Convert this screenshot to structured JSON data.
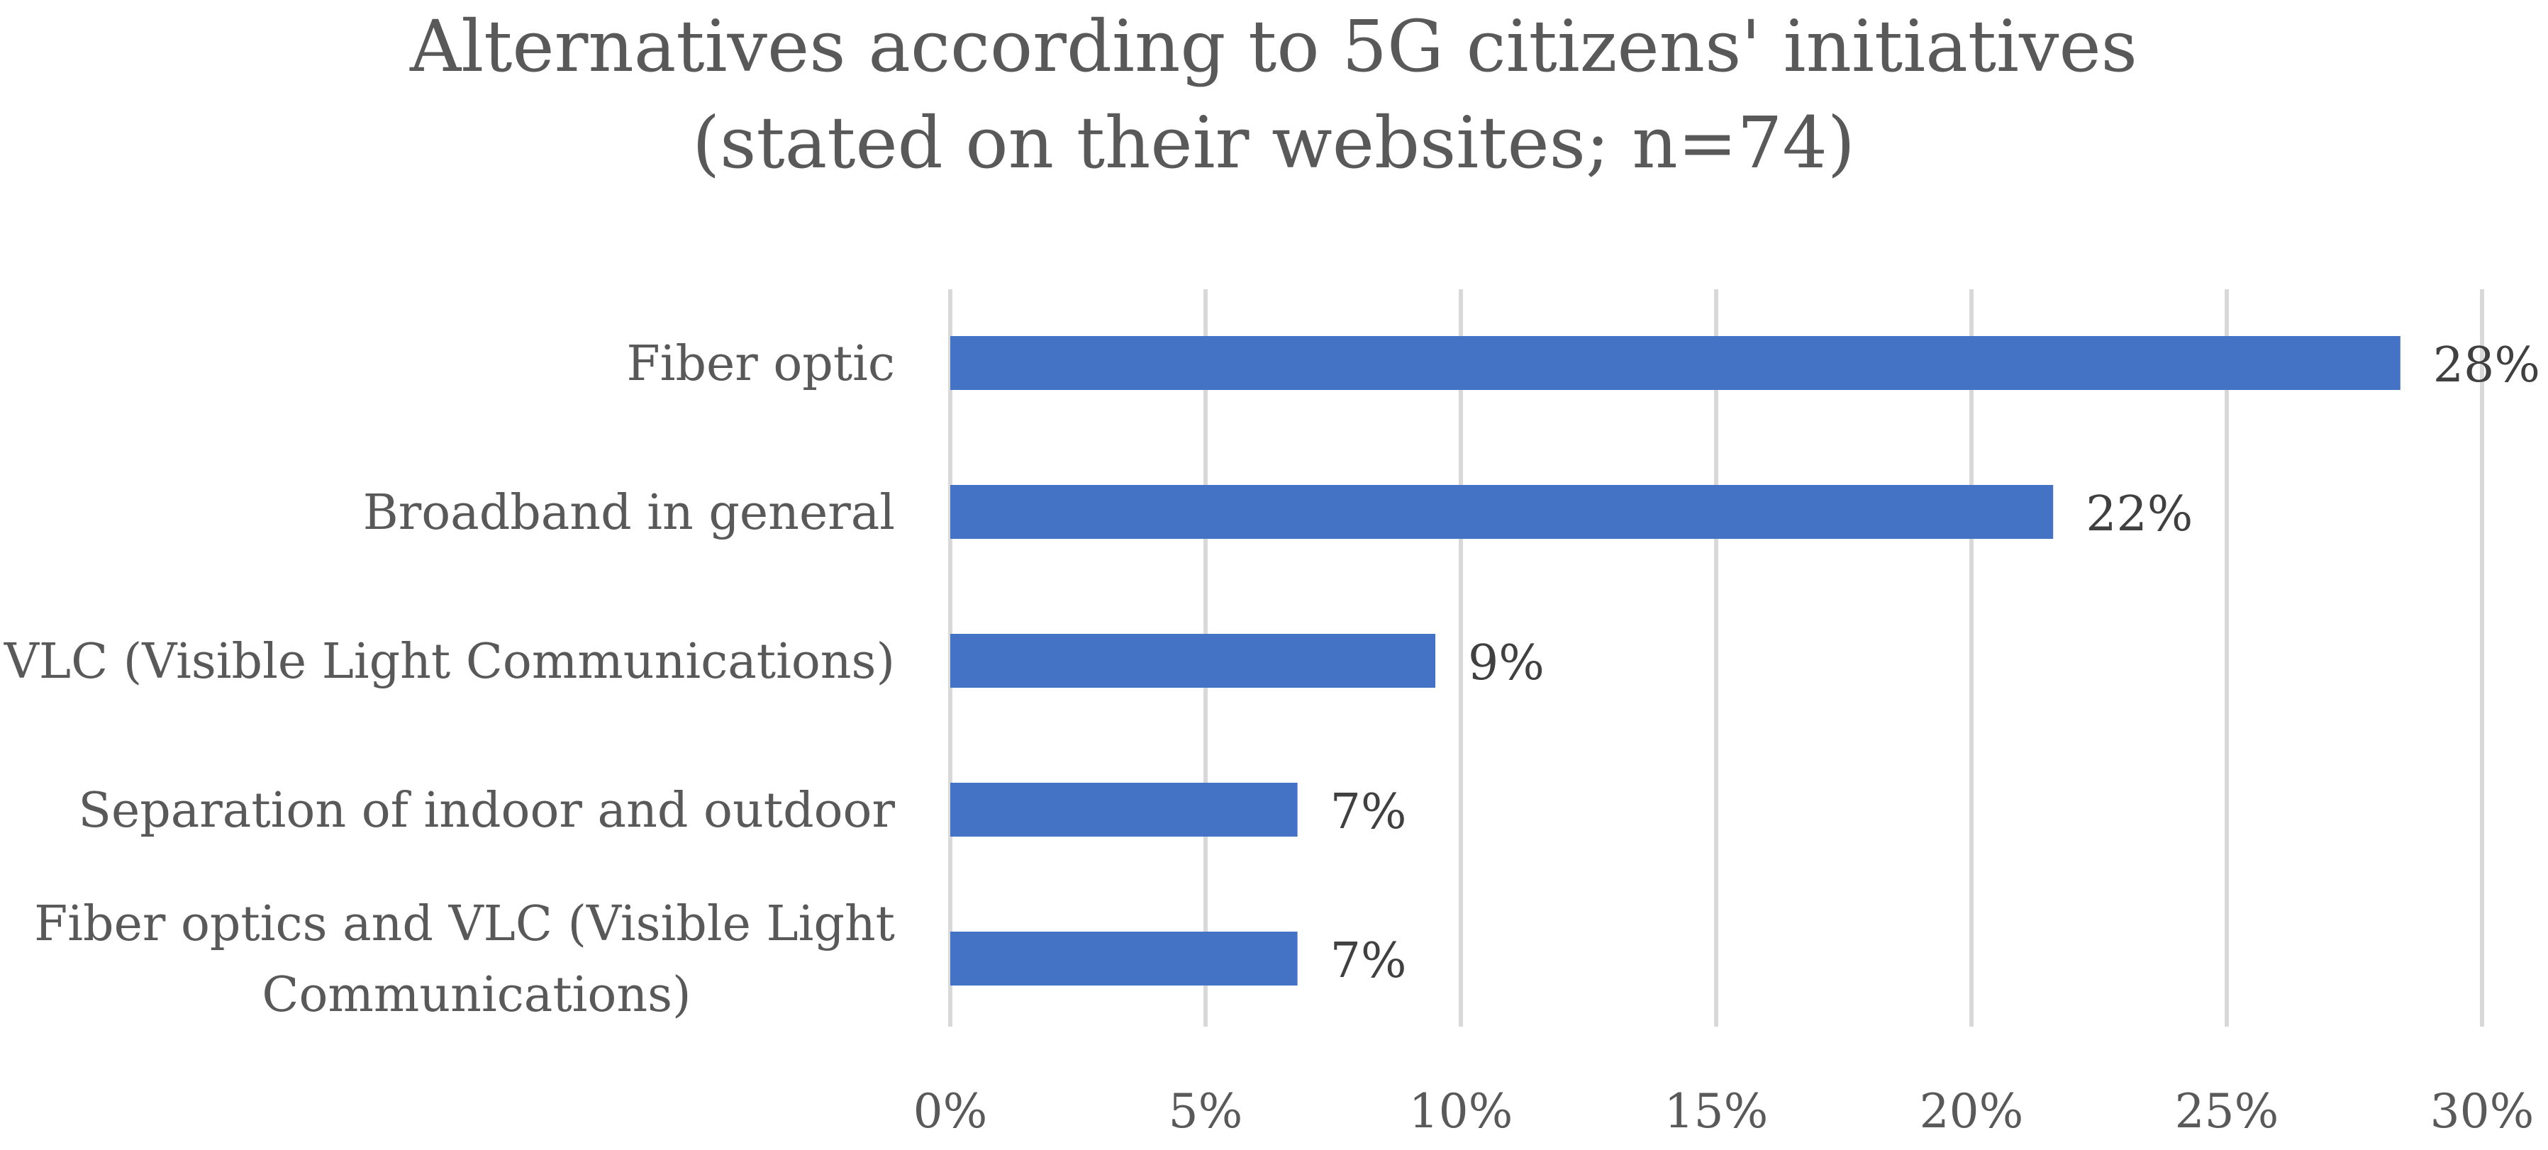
{
  "chart_data": {
    "type": "bar",
    "orientation": "horizontal",
    "title": [
      "Alternatives according to 5G citizens' initiatives",
      "(stated on their websites; n=74)"
    ],
    "categories": [
      [
        "Fiber optic"
      ],
      [
        "Broadband in general"
      ],
      [
        "VLC (Visible Light Communications)"
      ],
      [
        "Separation of indoor and outdoor"
      ],
      [
        "Fiber optics and VLC (Visible Light",
        "Communications)"
      ]
    ],
    "values": [
      0.284,
      0.216,
      0.095,
      0.068,
      0.068
    ],
    "data_labels": [
      "28%",
      "22%",
      "9%",
      "7%",
      "7%"
    ],
    "xlim": [
      0,
      0.3
    ],
    "x_ticks": [
      0,
      0.05,
      0.1,
      0.15,
      0.2,
      0.25,
      0.3
    ],
    "x_tick_labels": [
      "0%",
      "5%",
      "10%",
      "15%",
      "20%",
      "25%",
      "30%"
    ],
    "xlabel": "",
    "ylabel": "",
    "grid": true,
    "legend": "none",
    "bar_color": "#4472c4"
  }
}
